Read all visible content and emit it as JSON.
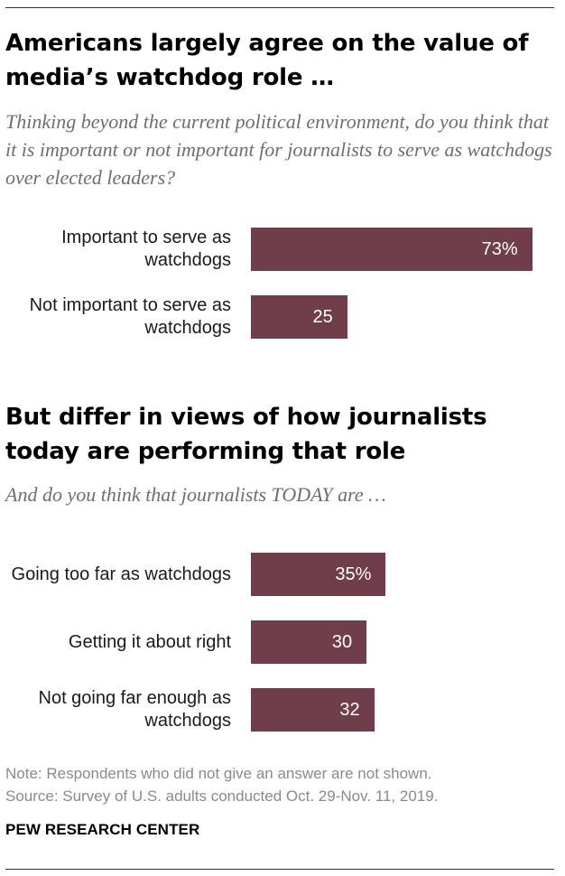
{
  "section1": {
    "title": "Americans largely agree on the value of media’s watchdog role …",
    "question": "Thinking beyond the current political environment, do you think that it is important or not important for journalists to serve as watchdogs over elected leaders?"
  },
  "section2": {
    "title": "But differ in views of how journalists today are performing that role",
    "question": "And do you think that journalists TODAY are …"
  },
  "chart_data": [
    {
      "type": "bar",
      "orientation": "horizontal",
      "categories": [
        "Important to serve as watchdogs",
        "Not important to serve as watchdogs"
      ],
      "values": [
        73,
        25
      ],
      "value_labels": [
        "73%",
        "25"
      ],
      "xlim": [
        0,
        100
      ],
      "color": "#6f3e4a"
    },
    {
      "type": "bar",
      "orientation": "horizontal",
      "categories": [
        "Going too far as watchdogs",
        "Getting it about right",
        "Not going far enough as watchdogs"
      ],
      "values": [
        35,
        30,
        32
      ],
      "value_labels": [
        "35%",
        "30",
        "32"
      ],
      "xlim": [
        0,
        100
      ],
      "color": "#6f3e4a"
    }
  ],
  "footer": {
    "note": "Note: Respondents who did not give an answer are not shown.",
    "source": "Source: Survey of U.S. adults conducted Oct. 29-Nov. 11, 2019.",
    "brand": "PEW RESEARCH CENTER"
  }
}
